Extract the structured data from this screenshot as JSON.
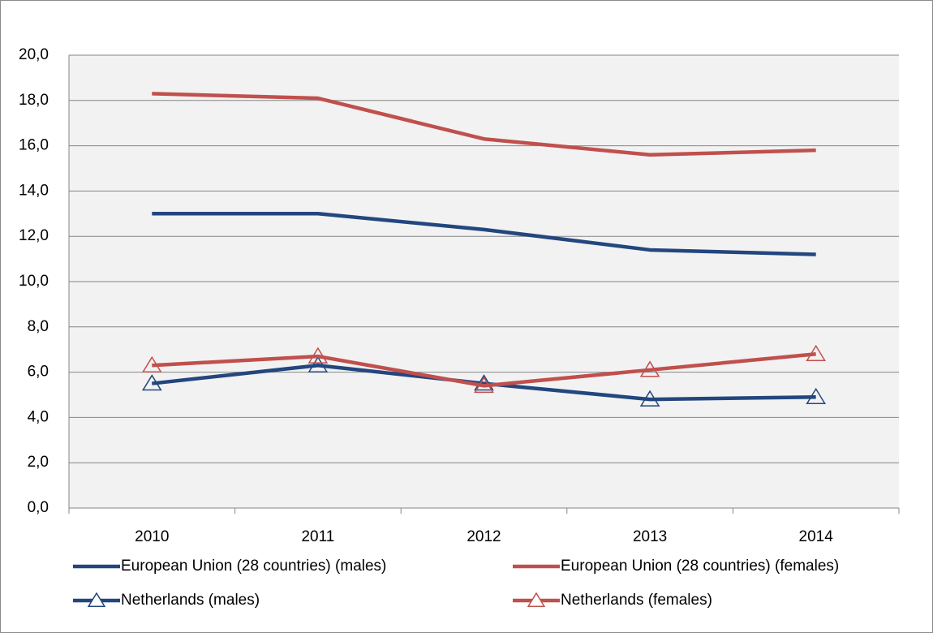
{
  "chart_data": {
    "type": "line",
    "categories": [
      "2010",
      "2011",
      "2012",
      "2013",
      "2014"
    ],
    "series": [
      {
        "name": "European Union (28 countries) (males)",
        "color": "#23467e",
        "values": [
          13.0,
          13.0,
          12.3,
          11.4,
          11.2
        ]
      },
      {
        "name": "European Union (28 countries) (females)",
        "color": "#c0504d",
        "values": [
          18.3,
          18.1,
          16.3,
          15.6,
          15.8
        ]
      },
      {
        "name": "Netherlands (males)",
        "color": "#23467e",
        "marker": "triangle",
        "values": [
          5.5,
          6.3,
          5.5,
          4.8,
          4.9
        ]
      },
      {
        "name": "Netherlands (females)",
        "color": "#c0504d",
        "marker": "triangle",
        "values": [
          6.3,
          6.7,
          5.4,
          6.1,
          6.8
        ]
      }
    ],
    "ylim": [
      0,
      20
    ],
    "yticks": [
      {
        "value": 0,
        "label": "0,0"
      },
      {
        "value": 2,
        "label": "2,0"
      },
      {
        "value": 4,
        "label": "4,0"
      },
      {
        "value": 6,
        "label": "6,0"
      },
      {
        "value": 8,
        "label": "8,0"
      },
      {
        "value": 10,
        "label": "10,0"
      },
      {
        "value": 12,
        "label": "12,0"
      },
      {
        "value": 14,
        "label": "14,0"
      },
      {
        "value": 16,
        "label": "16,0"
      },
      {
        "value": 18,
        "label": "18,0"
      },
      {
        "value": 20,
        "label": "20,0"
      }
    ],
    "grid": true,
    "legend": "bottom"
  }
}
